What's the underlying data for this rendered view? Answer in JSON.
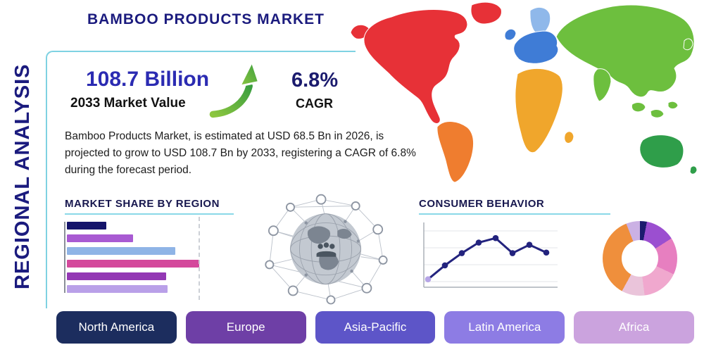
{
  "header": {
    "title": "BAMBOO PRODUCTS MARKET",
    "side_label": "REGIONAL ANALYSIS"
  },
  "stats": {
    "value": "108.7 Billion",
    "value_label": "2033 Market Value",
    "cagr": "6.8%",
    "cagr_label": "CAGR",
    "description": "Bamboo Products Market, is estimated at USD 68.5 Bn in 2026, is projected to grow to USD 108.7 Bn by 2033, registering a CAGR of 6.8% during the forecast period."
  },
  "sections": {
    "market_share_title": "MARKET SHARE BY REGION",
    "consumer_behavior_title": "CONSUMER BEHAVIOR"
  },
  "region_buttons": [
    {
      "label": "North America",
      "color": "#1c2d5e"
    },
    {
      "label": "Europe",
      "color": "#6e3fa6"
    },
    {
      "label": "Asia-Pacific",
      "color": "#5d55c8"
    },
    {
      "label": "Latin America",
      "color": "#8d7ce4"
    },
    {
      "label": "Africa",
      "color": "#cba3de"
    }
  ],
  "accent": {
    "frame_color": "#7fd2e2",
    "title_color": "#1b1b7e",
    "growth_arrow_green_light": "#8cc63f",
    "growth_arrow_green_dark": "#3a9e3f"
  },
  "map": {
    "continents": [
      {
        "name": "north-america",
        "color": "#e73137"
      },
      {
        "name": "alaska",
        "color": "#e73137"
      },
      {
        "name": "greenland",
        "color": "#e73137"
      },
      {
        "name": "south-america",
        "color": "#ef7d2f"
      },
      {
        "name": "europe",
        "color": "#3f7cd6"
      },
      {
        "name": "united-kingdom",
        "color": "#3f7cd6"
      },
      {
        "name": "scandinavia",
        "color": "#8fb8ea"
      },
      {
        "name": "africa",
        "color": "#f0a62c"
      },
      {
        "name": "madagascar",
        "color": "#f0a62c"
      },
      {
        "name": "asia",
        "color": "#6dbf3e"
      },
      {
        "name": "india",
        "color": "#6dbf3e"
      },
      {
        "name": "se-asia-1",
        "color": "#6dbf3e"
      },
      {
        "name": "se-asia-2",
        "color": "#6dbf3e"
      },
      {
        "name": "se-asia-3",
        "color": "#6dbf3e"
      },
      {
        "name": "japan",
        "color": "#6dbf3e"
      },
      {
        "name": "australia",
        "color": "#2f9e4a"
      },
      {
        "name": "new-zealand",
        "color": "#2f9e4a"
      }
    ]
  },
  "chart_data": [
    {
      "type": "bar",
      "title": "MARKET SHARE BY REGION",
      "orientation": "horizontal",
      "categories": [
        "",
        "",
        "",
        "",
        "",
        ""
      ],
      "values": [
        30,
        50,
        82,
        100,
        75,
        76
      ],
      "colors": [
        "#14146a",
        "#a85ad2",
        "#8fb4e6",
        "#d4499c",
        "#9338b4",
        "#b9a0e8"
      ],
      "xlim": [
        0,
        100
      ],
      "note": "unlabeled decorative bars, relative lengths estimated 0-100"
    },
    {
      "type": "line",
      "title": "CONSUMER BEHAVIOR",
      "x": [
        1,
        2,
        3,
        4,
        5,
        6,
        7,
        8
      ],
      "values": [
        8,
        33,
        55,
        74,
        82,
        55,
        70,
        56
      ],
      "ylim": [
        0,
        100
      ],
      "line_color": "#23237e",
      "first_point_color": "#b5a4e6",
      "grid": true,
      "note": "unlabeled axes, relative trend values estimated 0-100"
    },
    {
      "type": "pie",
      "title": "",
      "slices": [
        {
          "label": "",
          "pct": 3,
          "color": "#1b1b6e"
        },
        {
          "label": "",
          "pct": 13,
          "color": "#9b4fd0"
        },
        {
          "label": "",
          "pct": 16,
          "color": "#e77fc0"
        },
        {
          "label": "",
          "pct": 16,
          "color": "#f0a8ce"
        },
        {
          "label": "",
          "pct": 10,
          "color": "#eac4da"
        },
        {
          "label": "",
          "pct": 36,
          "color": "#ef8f3c"
        },
        {
          "label": "",
          "pct": 6,
          "color": "#cbb1e4"
        }
      ],
      "donut": true,
      "note": "unlabeled donut, slice shares estimated"
    }
  ]
}
